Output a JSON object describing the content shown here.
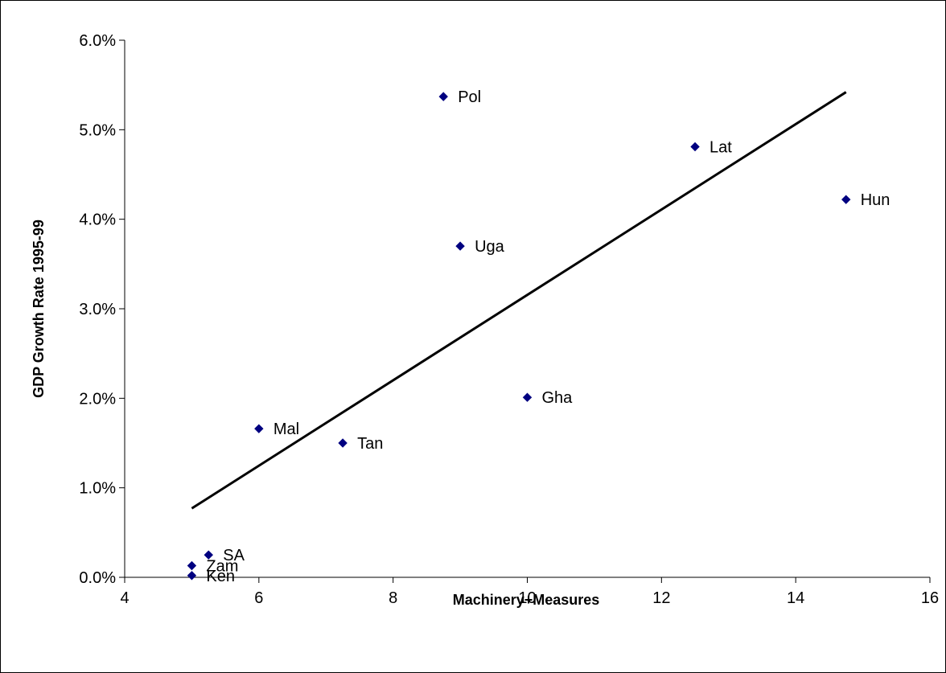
{
  "chart_data": {
    "type": "scatter",
    "title": "",
    "xlabel": "Machinery+Measures",
    "ylabel": "GDP Growth Rate 1995-99",
    "xlim": [
      4,
      16
    ],
    "ylim": [
      0,
      0.06
    ],
    "x_ticks": [
      {
        "value": 4,
        "label": "4"
      },
      {
        "value": 6,
        "label": "6"
      },
      {
        "value": 8,
        "label": "8"
      },
      {
        "value": 10,
        "label": "10"
      },
      {
        "value": 12,
        "label": "12"
      },
      {
        "value": 14,
        "label": "14"
      },
      {
        "value": 16,
        "label": "16"
      }
    ],
    "y_ticks": [
      {
        "value": 0.0,
        "label": "0.0%"
      },
      {
        "value": 0.01,
        "label": "1.0%"
      },
      {
        "value": 0.02,
        "label": "2.0%"
      },
      {
        "value": 0.03,
        "label": "3.0%"
      },
      {
        "value": 0.04,
        "label": "4.0%"
      },
      {
        "value": 0.05,
        "label": "5.0%"
      },
      {
        "value": 0.06,
        "label": "6.0%"
      }
    ],
    "grid": false,
    "legend": "none",
    "marker_color": "#000080",
    "trendline_color": "#000000",
    "points": [
      {
        "label": "Pol",
        "x": 8.75,
        "y": 0.0537
      },
      {
        "label": "Lat",
        "x": 12.5,
        "y": 0.0481
      },
      {
        "label": "Hun",
        "x": 14.75,
        "y": 0.0422
      },
      {
        "label": "Uga",
        "x": 9.0,
        "y": 0.037
      },
      {
        "label": "Gha",
        "x": 10.0,
        "y": 0.0201
      },
      {
        "label": "Mal",
        "x": 6.0,
        "y": 0.0166
      },
      {
        "label": "Tan",
        "x": 7.25,
        "y": 0.015
      },
      {
        "label": "SA",
        "x": 5.25,
        "y": 0.0025
      },
      {
        "label": "Zam",
        "x": 5.0,
        "y": 0.0013
      },
      {
        "label": "Ken",
        "x": 5.0,
        "y": 0.0002
      }
    ],
    "trendline": {
      "x": [
        5.0,
        14.75
      ],
      "y": [
        0.0077,
        0.0542
      ]
    }
  }
}
